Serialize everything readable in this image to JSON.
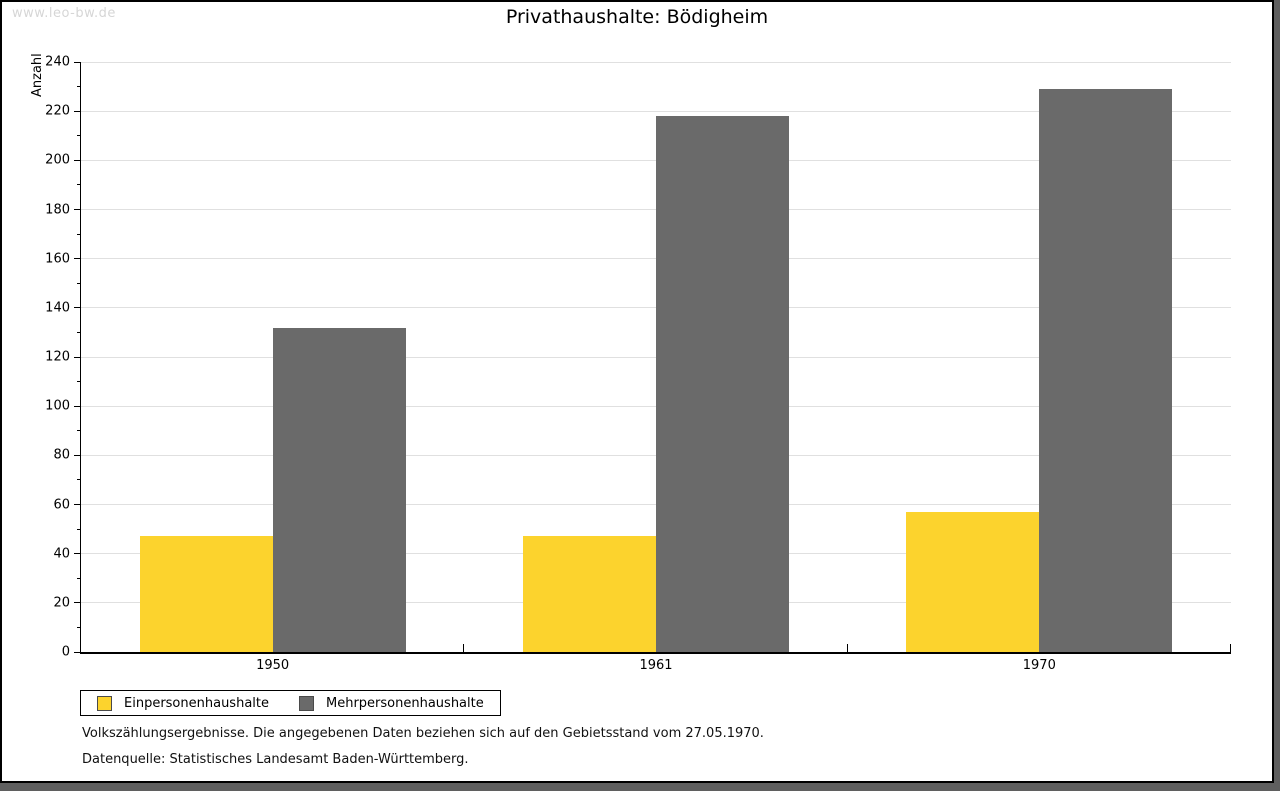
{
  "watermark": "www.leo-bw.de",
  "title": "Privathaushalte: Bödigheim",
  "chart_data": {
    "type": "bar",
    "title": "Privathaushalte: Bödigheim",
    "xlabel": "",
    "ylabel": "Anzahl",
    "categories": [
      "1950",
      "1961",
      "1970"
    ],
    "series": [
      {
        "name": "Einpersonenhaushalte",
        "color": "#fcd32d",
        "values": [
          47,
          47,
          57
        ]
      },
      {
        "name": "Mehrpersonenhaushalte",
        "color": "#6a6a6a",
        "values": [
          132,
          218,
          229
        ]
      }
    ],
    "ylim": [
      0,
      240
    ],
    "yticks": [
      0,
      20,
      40,
      60,
      80,
      100,
      120,
      140,
      160,
      180,
      200,
      220,
      240
    ],
    "minor_tick_step": 10,
    "grid": true,
    "legend_position": "bottom-left"
  },
  "footnotes": {
    "line1": "Volkszählungsergebnisse. Die angegebenen Daten beziehen sich auf den Gebietsstand vom 27.05.1970.",
    "line2": "Datenquelle: Statistisches Landesamt Baden-Württemberg."
  }
}
